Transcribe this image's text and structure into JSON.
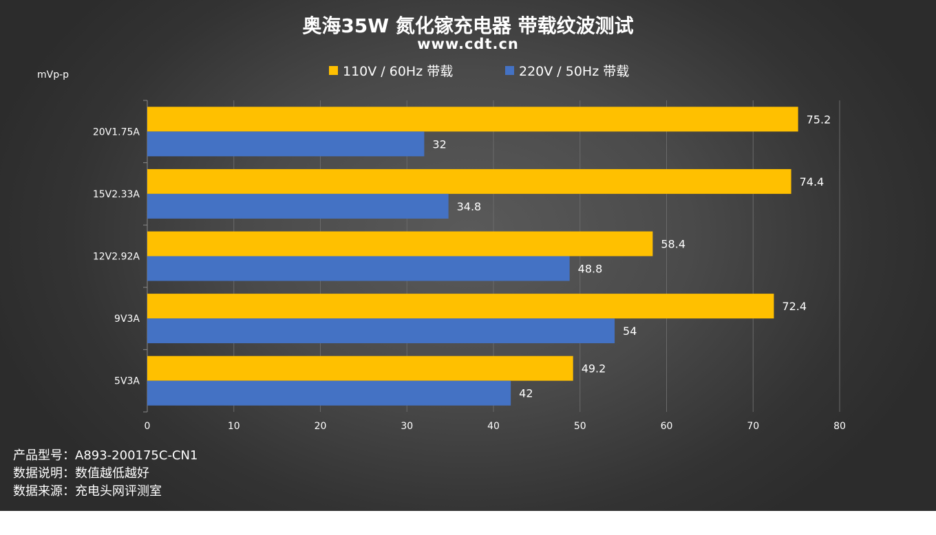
{
  "chart_data": {
    "type": "bar",
    "orientation": "horizontal",
    "title": "奥海35W 氮化镓充电器 带载纹波测试",
    "subtitle": "www.cdt.cn",
    "unit_label": "mVp-p",
    "categories": [
      "20V1.75A",
      "15V2.33A",
      "12V2.92A",
      "9V3A",
      "5V3A"
    ],
    "series": [
      {
        "name": "110V / 60Hz 带载",
        "color": "#FFC000",
        "values": [
          75.2,
          74.4,
          58.4,
          72.4,
          49.2
        ],
        "labels": [
          "75.2",
          "74.4",
          "58.4",
          "72.4",
          "49.2"
        ]
      },
      {
        "name": "220V / 50Hz 带载",
        "color": "#4472C4",
        "values": [
          32,
          34.8,
          48.8,
          54,
          42
        ],
        "labels": [
          "32",
          "34.8",
          "48.8",
          "54",
          "42"
        ]
      }
    ],
    "xlim": [
      0,
      80
    ],
    "xticks": [
      0,
      10,
      20,
      30,
      40,
      50,
      60,
      70,
      80
    ],
    "xtick_labels": [
      "0",
      "10",
      "20",
      "30",
      "40",
      "50",
      "60",
      "70",
      "80"
    ],
    "grid": true,
    "legend_position": "top"
  },
  "notes": [
    "产品型号：A893-200175C-CN1",
    "数据说明：数值越低越好",
    "数据来源：充电头网评测室"
  ]
}
